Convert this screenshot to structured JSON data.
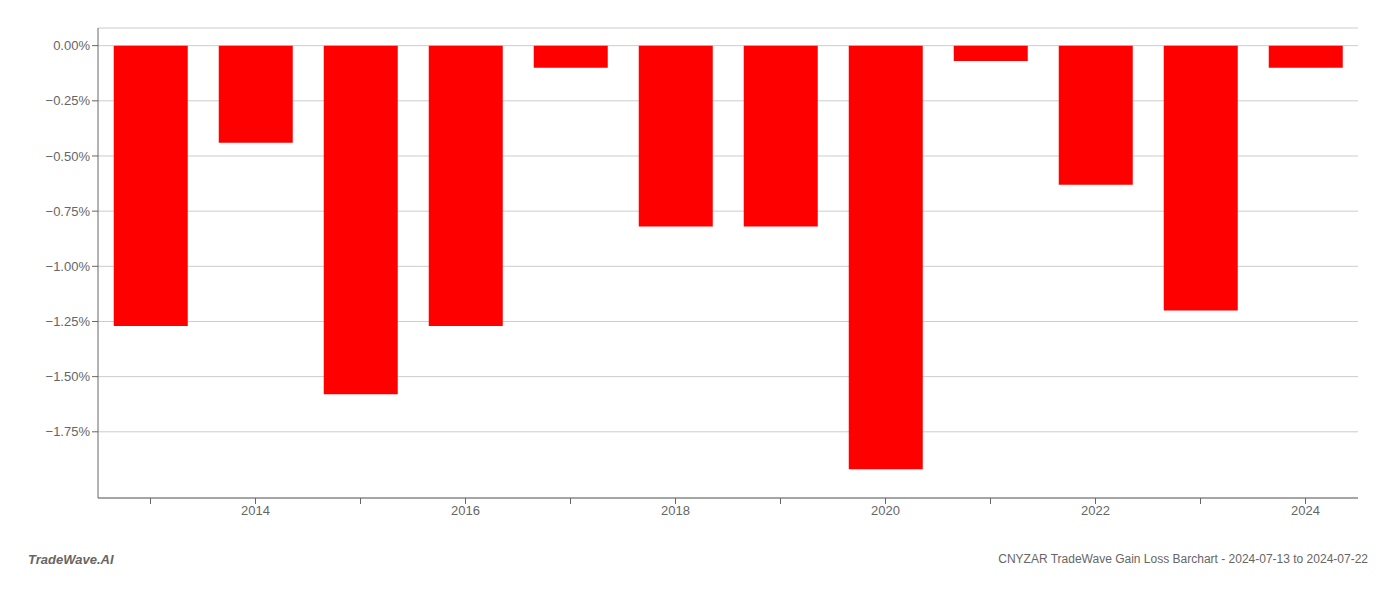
{
  "chart_data": {
    "type": "bar",
    "title": "CNYZAR TradeWave Gain Loss Barchart - 2024-07-13 to 2024-07-22",
    "annotations": [
      "TradeWave.AI"
    ],
    "categories": [
      null,
      "2014",
      null,
      "2016",
      null,
      "2018",
      null,
      "2020",
      null,
      "2022",
      null,
      "2024"
    ],
    "values": [
      -1.27,
      -0.44,
      -1.58,
      -1.27,
      -0.1,
      -0.82,
      -0.82,
      -1.92,
      -0.07,
      -0.63,
      -1.2,
      -0.1
    ],
    "color": "#ff0000",
    "ylim": [
      -2.05,
      0.08
    ],
    "yticks": [
      {
        "value": 0.0,
        "label": "0.00%"
      },
      {
        "value": -0.25,
        "label": "−0.25%"
      },
      {
        "value": -0.5,
        "label": "−0.50%"
      },
      {
        "value": -0.75,
        "label": "−0.75%"
      },
      {
        "value": -1.0,
        "label": "−1.00%"
      },
      {
        "value": -1.25,
        "label": "−1.25%"
      },
      {
        "value": -1.5,
        "label": "−1.50%"
      },
      {
        "value": -1.75,
        "label": "−1.75%"
      }
    ],
    "grid": true
  }
}
